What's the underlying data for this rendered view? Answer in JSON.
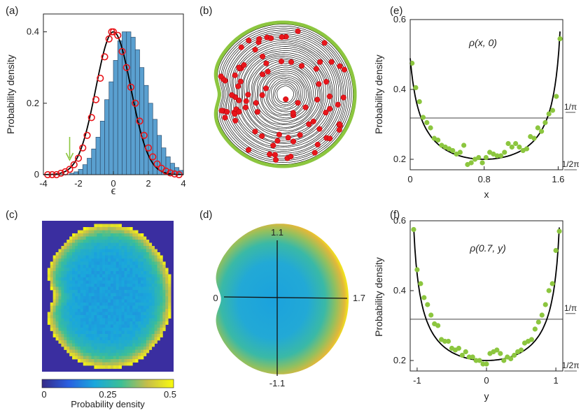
{
  "colors": {
    "bar_fill": "#5aa0d0",
    "bar_edge": "#2f4f6f",
    "red": "#e8161b",
    "green": "#8cc63f",
    "gray": "#9e9e9e",
    "black": "#000000",
    "heat_bg": "#3a2ea0"
  },
  "chart_data": [
    {
      "id": "a",
      "type": "bar",
      "panel_label": "(a)",
      "xlabel": "ϵ",
      "ylabel": "Probability density",
      "xlim": [
        -4,
        4
      ],
      "ylim": [
        0,
        0.45
      ],
      "xticks": [
        -4,
        -2,
        0,
        2,
        4
      ],
      "yticks": [
        0,
        0.2,
        0.4
      ],
      "ytick_labels": [
        "0",
        "0.2",
        "0.4"
      ],
      "bin_edges_start": -4.0,
      "bin_width": 0.25,
      "bar_values": [
        0.0,
        0.0,
        0.0,
        0.0,
        0.0,
        0.0,
        0.004,
        0.008,
        0.015,
        0.028,
        0.046,
        0.072,
        0.105,
        0.15,
        0.21,
        0.26,
        0.32,
        0.375,
        0.4,
        0.4,
        0.385,
        0.35,
        0.3,
        0.25,
        0.2,
        0.155,
        0.11,
        0.075,
        0.05,
        0.032,
        0.02,
        0.012
      ],
      "circle_x": [
        -3.75,
        -3.5,
        -3.25,
        -3.0,
        -2.75,
        -2.5,
        -2.25,
        -2.0,
        -1.75,
        -1.5,
        -1.25,
        -1.0,
        -0.75,
        -0.5,
        -0.25,
        -0.1,
        0.0,
        0.25,
        0.5,
        0.75,
        1.0,
        1.25,
        1.5,
        1.75,
        2.0,
        2.25,
        2.5,
        2.75,
        3.0,
        3.25,
        3.5,
        3.75
      ],
      "circle_y": [
        0.0,
        0.0,
        0.0,
        0.004,
        0.008,
        0.015,
        0.028,
        0.046,
        0.075,
        0.11,
        0.16,
        0.21,
        0.27,
        0.33,
        0.38,
        0.4,
        0.4,
        0.39,
        0.345,
        0.3,
        0.245,
        0.2,
        0.15,
        0.11,
        0.075,
        0.05,
        0.03,
        0.018,
        0.01,
        0.005,
        0.002,
        0.0
      ],
      "gaussian": {
        "mean": 0.0,
        "sigma": 1.0,
        "amplitude": 0.4
      },
      "arrow_x": -2.5,
      "annotation": "green arrow"
    },
    {
      "id": "b",
      "type": "scatter",
      "panel_label": "(b)",
      "description_points_count": 90
    },
    {
      "id": "c",
      "type": "heatmap",
      "panel_label": "(c)",
      "colorbar_label": "Probability density",
      "colorbar_ticks": [
        "0",
        "0.25",
        "0.5"
      ],
      "grid": 48
    },
    {
      "id": "d",
      "type": "heatmap",
      "panel_label": "(d)",
      "axis_labels": {
        "top": "1.1",
        "bottom": "-1.1",
        "left": "0",
        "right": "1.7"
      }
    },
    {
      "id": "e",
      "type": "scatter",
      "panel_label": "(e)",
      "title": "ρ(x, 0)",
      "xlabel": "x",
      "ylabel": "Probability density",
      "xlim": [
        0,
        1.65
      ],
      "ylim": [
        0.17,
        0.6
      ],
      "xticks": [
        0,
        0.8,
        1.6
      ],
      "xtick_labels": [
        "0",
        "0.8",
        "1.6"
      ],
      "yticks": [
        0.2,
        0.4,
        0.6
      ],
      "ytick_labels": [
        "0.2",
        "0.4",
        "0.6"
      ],
      "ref_line": 0.3183,
      "ref_labels": [
        "1/π",
        "1/2π"
      ],
      "points_x": [
        0.02,
        0.06,
        0.1,
        0.14,
        0.18,
        0.22,
        0.26,
        0.3,
        0.34,
        0.38,
        0.42,
        0.46,
        0.5,
        0.54,
        0.58,
        0.62,
        0.66,
        0.7,
        0.74,
        0.78,
        0.82,
        0.86,
        0.9,
        0.94,
        0.98,
        1.02,
        1.06,
        1.1,
        1.14,
        1.18,
        1.22,
        1.26,
        1.3,
        1.34,
        1.38,
        1.42,
        1.46,
        1.5,
        1.54,
        1.58,
        1.62
      ],
      "points_y": [
        0.475,
        0.405,
        0.365,
        0.32,
        0.305,
        0.29,
        0.26,
        0.255,
        0.24,
        0.235,
        0.23,
        0.225,
        0.215,
        0.22,
        0.24,
        0.185,
        0.19,
        0.2,
        0.205,
        0.19,
        0.205,
        0.22,
        0.215,
        0.21,
        0.21,
        0.22,
        0.245,
        0.235,
        0.245,
        0.235,
        0.225,
        0.23,
        0.265,
        0.26,
        0.29,
        0.28,
        0.305,
        0.33,
        0.34,
        0.38,
        0.545
      ],
      "curve": {
        "a": 0.2,
        "center": 0.8,
        "k": 0.42
      }
    },
    {
      "id": "f",
      "type": "scatter",
      "panel_label": "(f)",
      "title": "ρ(0.7, y)",
      "xlabel": "y",
      "ylabel": "Probability density",
      "xlim": [
        -1.1,
        1.1
      ],
      "ylim": [
        0.17,
        0.6
      ],
      "xticks": [
        -1,
        0,
        1
      ],
      "xtick_labels": [
        "-1",
        "0",
        "1"
      ],
      "yticks": [
        0.2,
        0.4,
        0.6
      ],
      "ytick_labels": [
        "0.2",
        "0.4",
        "0.6"
      ],
      "ref_line": 0.3183,
      "ref_labels": [
        "1/π",
        "1/2π"
      ],
      "points_x": [
        -1.05,
        -1.0,
        -0.95,
        -0.9,
        -0.85,
        -0.8,
        -0.75,
        -0.7,
        -0.65,
        -0.6,
        -0.55,
        -0.5,
        -0.45,
        -0.4,
        -0.35,
        -0.3,
        -0.25,
        -0.2,
        -0.15,
        -0.1,
        -0.05,
        0.0,
        0.05,
        0.1,
        0.15,
        0.2,
        0.25,
        0.3,
        0.35,
        0.4,
        0.45,
        0.5,
        0.55,
        0.6,
        0.65,
        0.7,
        0.75,
        0.8,
        0.85,
        0.9,
        0.95,
        1.0,
        1.05
      ],
      "points_y": [
        0.575,
        0.46,
        0.42,
        0.38,
        0.36,
        0.33,
        0.305,
        0.3,
        0.26,
        0.255,
        0.255,
        0.235,
        0.23,
        0.235,
        0.215,
        0.225,
        0.21,
        0.21,
        0.2,
        0.2,
        0.19,
        0.19,
        0.22,
        0.225,
        0.23,
        0.22,
        0.2,
        0.21,
        0.205,
        0.215,
        0.225,
        0.23,
        0.25,
        0.255,
        0.26,
        0.29,
        0.31,
        0.33,
        0.36,
        0.4,
        0.42,
        0.515,
        0.57
      ],
      "curve": {
        "a": 0.2,
        "center": 0.0,
        "k": 0.3
      }
    }
  ]
}
